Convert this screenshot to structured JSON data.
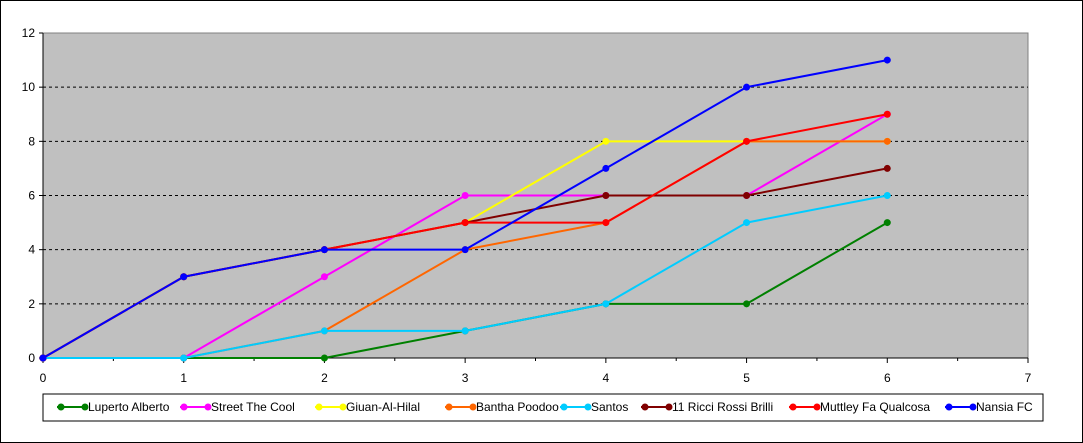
{
  "chart_data": {
    "type": "line",
    "title": "",
    "xlabel": "",
    "ylabel": "",
    "xlim": [
      0,
      7
    ],
    "ylim": [
      0,
      12
    ],
    "x_ticks": [
      "0",
      "1",
      "2",
      "3",
      "4",
      "5",
      "6",
      "7"
    ],
    "y_ticks": [
      "0",
      "2",
      "4",
      "6",
      "8",
      "10",
      "12"
    ],
    "grid": "horizontal dashed",
    "plot_background": "#c0c0c0",
    "legend_position": "bottom",
    "series": [
      {
        "name": "Luperto Alberto",
        "color": "#008000",
        "x": [
          0,
          1,
          2,
          3,
          4,
          5,
          6
        ],
        "y": [
          0,
          0,
          0,
          1,
          2,
          2,
          5
        ]
      },
      {
        "name": "Street The Cool",
        "color": "#ff00ff",
        "x": [
          0,
          1,
          2,
          3,
          4,
          5,
          6
        ],
        "y": [
          0,
          0,
          3,
          6,
          6,
          6,
          9
        ]
      },
      {
        "name": "Giuan-Al-Hilal",
        "color": "#ffff00",
        "x": [
          0,
          1,
          2,
          3,
          4,
          5,
          6
        ],
        "y": [
          0,
          3,
          4,
          5,
          8,
          8,
          8
        ]
      },
      {
        "name": "Bantha Poodoo",
        "color": "#ff6600",
        "x": [
          0,
          1,
          2,
          3,
          4,
          5,
          6
        ],
        "y": [
          0,
          0,
          1,
          4,
          5,
          8,
          8
        ]
      },
      {
        "name": "Santos",
        "color": "#00ccff",
        "x": [
          0,
          1,
          2,
          3,
          4,
          5,
          6
        ],
        "y": [
          0,
          0,
          1,
          1,
          2,
          5,
          6
        ]
      },
      {
        "name": "11 Ricci Rossi Brilli",
        "color": "#800000",
        "x": [
          0,
          1,
          2,
          3,
          4,
          5,
          6
        ],
        "y": [
          0,
          3,
          4,
          5,
          6,
          6,
          7
        ]
      },
      {
        "name": "Muttley Fa Qualcosa",
        "color": "#ff0000",
        "x": [
          0,
          1,
          2,
          3,
          4,
          5,
          6
        ],
        "y": [
          0,
          3,
          4,
          5,
          5,
          8,
          9
        ]
      },
      {
        "name": "Nansia FC",
        "color": "#0000ff",
        "x": [
          0,
          1,
          2,
          3,
          4,
          5,
          6
        ],
        "y": [
          0,
          3,
          4,
          4,
          7,
          10,
          11
        ]
      }
    ]
  }
}
